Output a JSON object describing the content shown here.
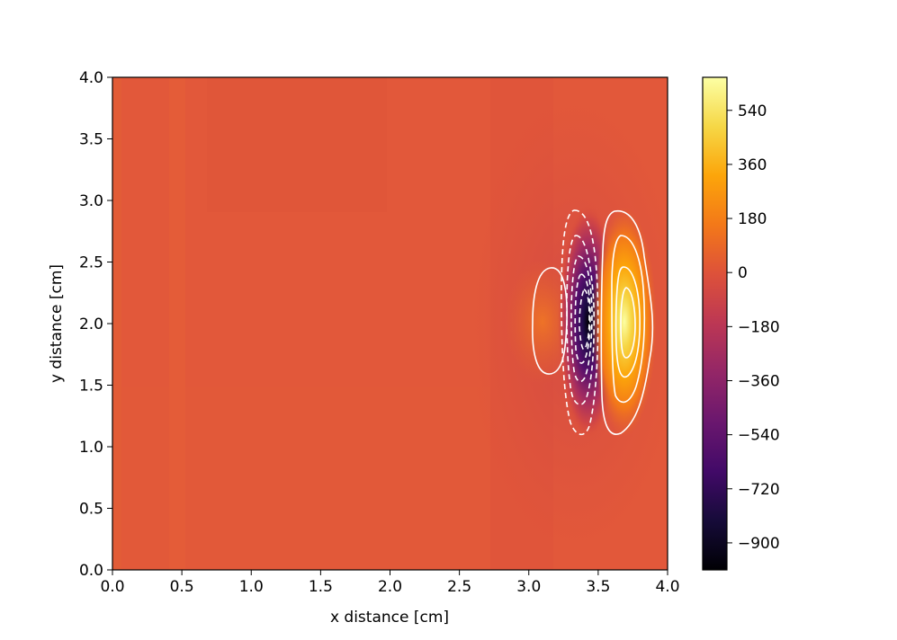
{
  "chart_data": {
    "type": "heatmap",
    "title": "",
    "xlabel": "x distance [cm]",
    "ylabel": "y distance [cm]",
    "xlim": [
      0.0,
      4.0
    ],
    "ylim": [
      0.0,
      4.0
    ],
    "x_ticks": [
      "0.0",
      "0.5",
      "1.0",
      "1.5",
      "2.0",
      "2.5",
      "3.0",
      "3.5",
      "4.0"
    ],
    "y_ticks": [
      "0.0",
      "0.5",
      "1.0",
      "1.5",
      "2.0",
      "2.5",
      "3.0",
      "3.5",
      "4.0"
    ],
    "colormap": "inferno",
    "background_value": 0,
    "colorbar": {
      "range": [
        -990,
        650
      ],
      "ticks": [
        "540",
        "360",
        "180",
        "0",
        "−180",
        "−360",
        "−540",
        "−720",
        "−900"
      ],
      "tick_values": [
        540,
        360,
        180,
        0,
        -180,
        -360,
        -540,
        -720,
        -900
      ]
    },
    "features": [
      {
        "kind": "minimum",
        "center": [
          3.43,
          2.05
        ],
        "value": -990
      },
      {
        "kind": "maximum",
        "center": [
          3.68,
          2.02
        ],
        "value": 650
      },
      {
        "kind": "weak_maximum",
        "center": [
          3.1,
          2.02
        ],
        "value": 60
      }
    ],
    "contours": {
      "negative_style": "dashed",
      "positive_style": "solid",
      "color": "#ffffff"
    }
  }
}
